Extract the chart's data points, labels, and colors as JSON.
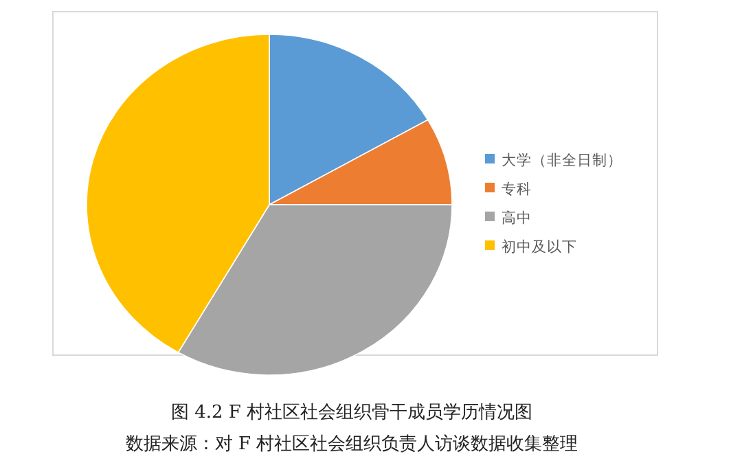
{
  "chart_data": {
    "type": "pie",
    "title": "图 4.2   F 村社区社会组织骨干成员学历情况图",
    "annotations": [
      "数据来源：对 F 村社区社会组织负责人访谈数据收集整理"
    ],
    "categories": [
      "大学（非全日制）",
      "专科",
      "高中",
      "初中及以下"
    ],
    "values": [
      16.7,
      8.3,
      33.3,
      41.7
    ],
    "colors": [
      "#5b9bd5",
      "#ed7d31",
      "#a5a5a5",
      "#ffc000"
    ],
    "legend": "right"
  }
}
